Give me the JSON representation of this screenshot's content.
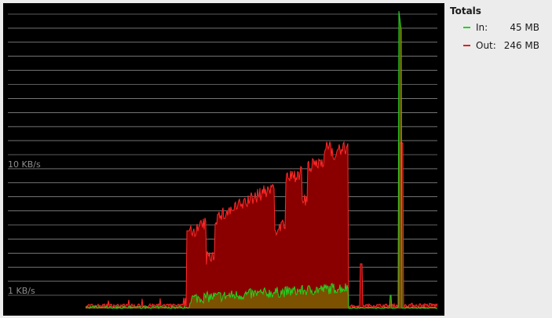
{
  "graph": {
    "axis_labels": [
      {
        "text": "10 KB/s"
      },
      {
        "text": "1 KB/s"
      }
    ],
    "colors": {
      "background": "#000000",
      "grid": "#b8b8b8",
      "in_line": "#22d322",
      "out_line": "#ff2a2a",
      "out_fill": "#8a0000",
      "in_fill": "#7a5a00"
    }
  },
  "legend": {
    "title": "Totals",
    "items": [
      {
        "label": "In:",
        "value": "45 MB",
        "color": "#22d322"
      },
      {
        "label": "Out:",
        "value": "246 MB",
        "color": "#e02020"
      }
    ]
  }
}
